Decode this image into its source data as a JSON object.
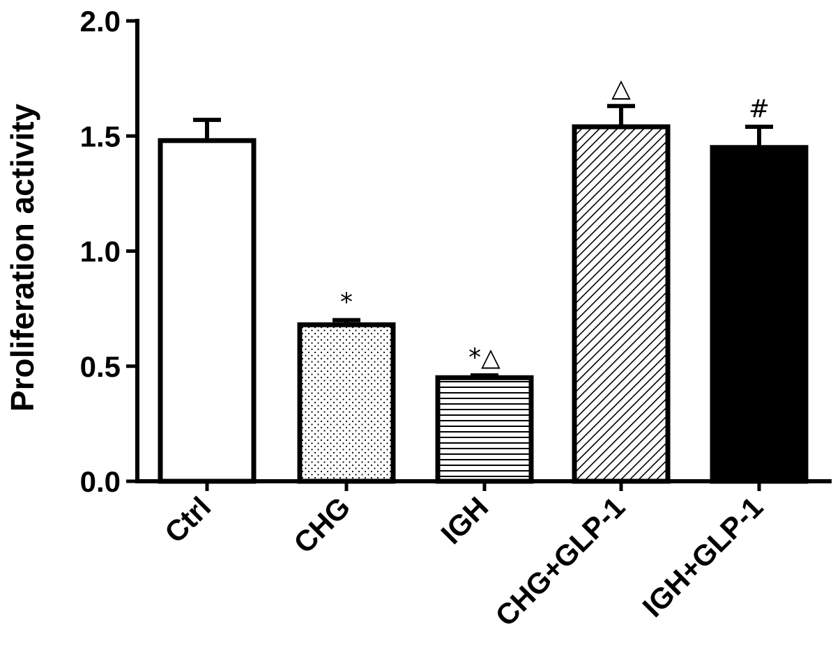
{
  "chart_data": {
    "type": "bar",
    "categories": [
      "Ctrl",
      "CHG",
      "IGH",
      "CHG+GLP-1",
      "IGH+GLP-1"
    ],
    "values": [
      1.48,
      0.68,
      0.45,
      1.54,
      1.45
    ],
    "errors": [
      0.09,
      0.02,
      0.01,
      0.09,
      0.09
    ],
    "annotations": [
      "",
      "*",
      "*△",
      "△",
      "#"
    ],
    "fills": [
      "white",
      "dots",
      "horizontal-lines",
      "diagonal-lines",
      "solid-black"
    ],
    "title": "",
    "xlabel": "",
    "ylabel": "Proliferation activity",
    "ylim": [
      0,
      2.0
    ],
    "yticks": [
      "0.0",
      "0.5",
      "1.0",
      "1.5",
      "2.0"
    ],
    "grid": false,
    "colors": {
      "stroke": "#000000",
      "background": "#ffffff"
    }
  }
}
